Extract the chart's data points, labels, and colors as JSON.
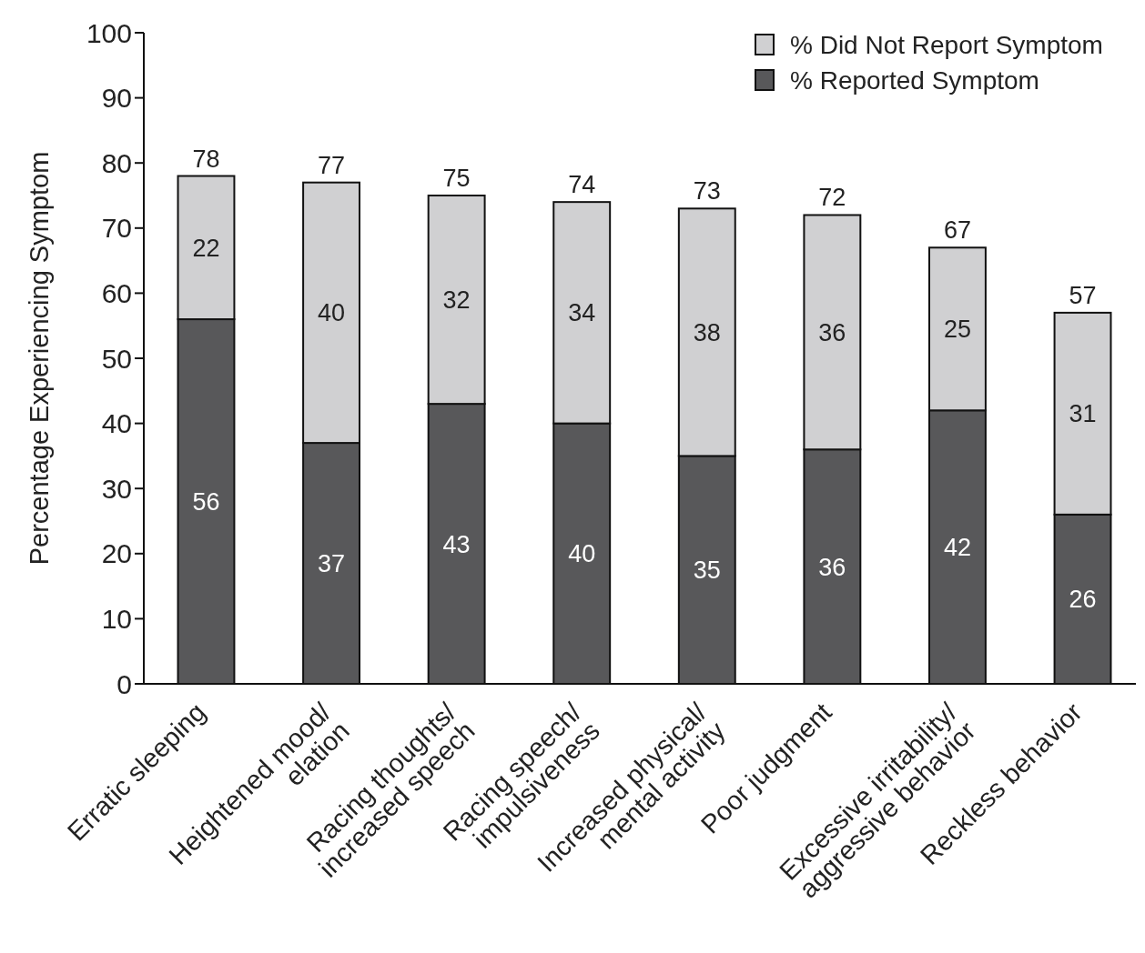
{
  "chart_data": {
    "type": "bar",
    "stacked": true,
    "ylabel": "Percentage Experiencing Symptom",
    "categories": [
      "Erratic sleeping",
      "Heightened mood/\nelation",
      "Racing thoughts/\nincreased speech",
      "Racing speech/\nimpulsiveness",
      "Increased physical/\nmental activity",
      "Poor judgment",
      "Excessive irritability/\naggressive behavior",
      "Reckless behavior"
    ],
    "series": [
      {
        "name": "% Reported Symptom",
        "color": "#58585a",
        "values": [
          56,
          37,
          43,
          40,
          35,
          36,
          42,
          26
        ]
      },
      {
        "name": "% Did Not Report Symptom",
        "color": "#d0d0d2",
        "values": [
          22,
          40,
          32,
          34,
          38,
          36,
          25,
          31
        ]
      }
    ],
    "totals": [
      "78",
      "77",
      "75",
      "74",
      "73",
      "72",
      "67",
      "57"
    ],
    "data_labels": true,
    "ylim": [
      0,
      100
    ],
    "yticks": [
      0,
      10,
      20,
      30,
      40,
      50,
      60,
      70,
      80,
      90,
      100
    ],
    "legend": "top right"
  }
}
